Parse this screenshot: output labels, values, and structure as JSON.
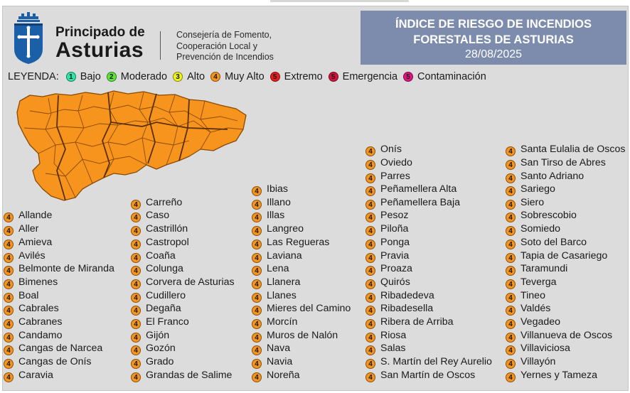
{
  "header": {
    "brand_line1": "Principado de",
    "brand_line2": "Asturias",
    "dept_lines": [
      "Consejería de Fomento,",
      "Cooperación Local y",
      "Prevención de Incendios"
    ],
    "title_line1": "ÍNDICE DE RIESGO DE INCENDIOS",
    "title_line2": "FORESTALES DE ASTURIAS",
    "date": "28/08/2025"
  },
  "legend": {
    "title": "LEYENDA:",
    "items": [
      {
        "level": "1",
        "label": "Bajo",
        "color": "#2ee6a8"
      },
      {
        "level": "2",
        "label": "Moderado",
        "color": "#5ce63c"
      },
      {
        "level": "3",
        "label": "Alto",
        "color": "#f2f21f"
      },
      {
        "level": "4",
        "label": "Muy Alto",
        "color": "#f7941d"
      },
      {
        "level": "5",
        "label": "Extremo",
        "color": "#e81e1e"
      },
      {
        "level": "5",
        "label": "Emergencia",
        "color": "#d2143c"
      },
      {
        "level": "5",
        "label": "Contaminación",
        "color": "#e0147e"
      }
    ]
  },
  "map": {
    "fill_color": "#f7941d",
    "border_color": "#b35f00",
    "level": "4"
  },
  "municipalities": [
    {
      "name": "Allande",
      "level": "4"
    },
    {
      "name": "Aller",
      "level": "4"
    },
    {
      "name": "Amieva",
      "level": "4"
    },
    {
      "name": "Avilés",
      "level": "4"
    },
    {
      "name": "Belmonte de Miranda",
      "level": "4"
    },
    {
      "name": "Bimenes",
      "level": "4"
    },
    {
      "name": "Boal",
      "level": "4"
    },
    {
      "name": "Cabrales",
      "level": "4"
    },
    {
      "name": "Cabranes",
      "level": "4"
    },
    {
      "name": "Candamo",
      "level": "4"
    },
    {
      "name": "Cangas de Narcea",
      "level": "4"
    },
    {
      "name": "Cangas de Onís",
      "level": "4"
    },
    {
      "name": "Caravia",
      "level": "4"
    },
    {
      "name": "Carreño",
      "level": "4"
    },
    {
      "name": "Caso",
      "level": "4"
    },
    {
      "name": "Castrillón",
      "level": "4"
    },
    {
      "name": "Castropol",
      "level": "4"
    },
    {
      "name": "Coaña",
      "level": "4"
    },
    {
      "name": "Colunga",
      "level": "4"
    },
    {
      "name": "Corvera de Asturias",
      "level": "4"
    },
    {
      "name": "Cudillero",
      "level": "4"
    },
    {
      "name": "Degaña",
      "level": "4"
    },
    {
      "name": "El Franco",
      "level": "4"
    },
    {
      "name": "Gijón",
      "level": "4"
    },
    {
      "name": "Gozón",
      "level": "4"
    },
    {
      "name": "Grado",
      "level": "4"
    },
    {
      "name": "Grandas de Salime",
      "level": "4"
    },
    {
      "name": "Ibias",
      "level": "4"
    },
    {
      "name": "Illano",
      "level": "4"
    },
    {
      "name": "Illas",
      "level": "4"
    },
    {
      "name": "Langreo",
      "level": "4"
    },
    {
      "name": "Las Regueras",
      "level": "4"
    },
    {
      "name": "Laviana",
      "level": "4"
    },
    {
      "name": "Lena",
      "level": "4"
    },
    {
      "name": "Llanera",
      "level": "4"
    },
    {
      "name": "Llanes",
      "level": "4"
    },
    {
      "name": "Mieres del Camino",
      "level": "4"
    },
    {
      "name": "Morcín",
      "level": "4"
    },
    {
      "name": "Muros de Nalón",
      "level": "4"
    },
    {
      "name": "Nava",
      "level": "4"
    },
    {
      "name": "Navia",
      "level": "4"
    },
    {
      "name": "Noreña",
      "level": "4"
    },
    {
      "name": "Onís",
      "level": "4"
    },
    {
      "name": "Oviedo",
      "level": "4"
    },
    {
      "name": "Parres",
      "level": "4"
    },
    {
      "name": "Peñamellera Alta",
      "level": "4"
    },
    {
      "name": "Peñamellera Baja",
      "level": "4"
    },
    {
      "name": "Pesoz",
      "level": "4"
    },
    {
      "name": "Piloña",
      "level": "4"
    },
    {
      "name": "Ponga",
      "level": "4"
    },
    {
      "name": "Pravia",
      "level": "4"
    },
    {
      "name": "Proaza",
      "level": "4"
    },
    {
      "name": "Quirós",
      "level": "4"
    },
    {
      "name": "Ribadedeva",
      "level": "4"
    },
    {
      "name": "Ribadesella",
      "level": "4"
    },
    {
      "name": "Ribera de Arriba",
      "level": "4"
    },
    {
      "name": "Riosa",
      "level": "4"
    },
    {
      "name": "Salas",
      "level": "4"
    },
    {
      "name": "S. Martín del Rey Aurelio",
      "level": "4"
    },
    {
      "name": "San Martín de Oscos",
      "level": "4"
    },
    {
      "name": "Santa Eulalia de Oscos",
      "level": "4"
    },
    {
      "name": "San Tirso de Abres",
      "level": "4"
    },
    {
      "name": "Santo Adriano",
      "level": "4"
    },
    {
      "name": "Sariego",
      "level": "4"
    },
    {
      "name": "Siero",
      "level": "4"
    },
    {
      "name": "Sobrescobio",
      "level": "4"
    },
    {
      "name": "Somiedo",
      "level": "4"
    },
    {
      "name": "Soto del Barco",
      "level": "4"
    },
    {
      "name": "Tapia de Casariego",
      "level": "4"
    },
    {
      "name": "Taramundi",
      "level": "4"
    },
    {
      "name": "Teverga",
      "level": "4"
    },
    {
      "name": "Tineo",
      "level": "4"
    },
    {
      "name": "Valdés",
      "level": "4"
    },
    {
      "name": "Vegadeo",
      "level": "4"
    },
    {
      "name": "Villanueva de Oscos",
      "level": "4"
    },
    {
      "name": "Villaviciosa",
      "level": "4"
    },
    {
      "name": "Villayón",
      "level": "4"
    },
    {
      "name": "Yernes y Tameza",
      "level": "4"
    }
  ]
}
